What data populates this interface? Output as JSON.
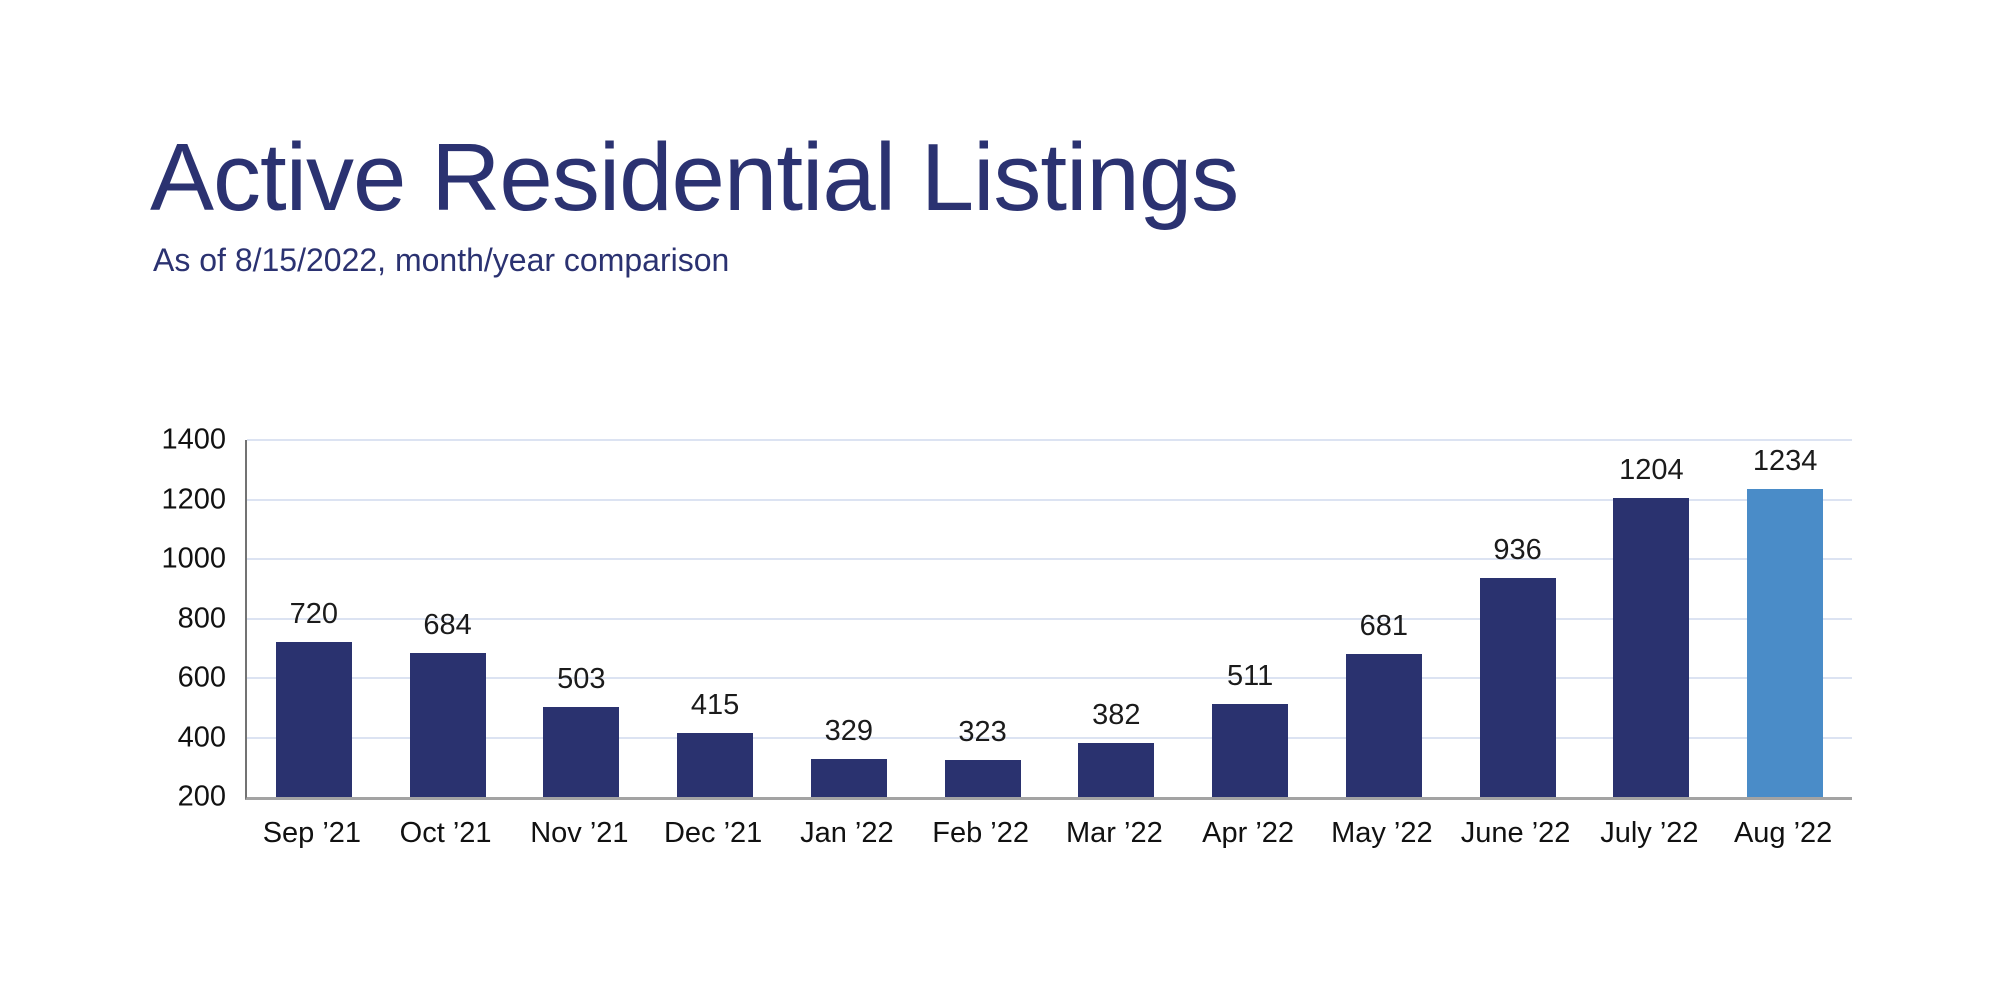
{
  "chart_data": {
    "type": "bar",
    "title": "Active Residential Listings",
    "subtitle": "As of 8/15/2022, month/year comparison",
    "categories": [
      "Sep ’21",
      "Oct ’21",
      "Nov ’21",
      "Dec ’21",
      "Jan ’22",
      "Feb ’22",
      "Mar ’22",
      "Apr ’22",
      "May ’22",
      "June ’22",
      "July ’22",
      "Aug ’22"
    ],
    "values": [
      720,
      684,
      503,
      415,
      329,
      323,
      382,
      511,
      681,
      936,
      1204,
      1234
    ],
    "data_labels": [
      "720",
      "684",
      "503",
      "415",
      "329",
      "323",
      "382",
      "511",
      "681",
      "936",
      "1204",
      "1234"
    ],
    "highlight_index": 11,
    "xlabel": "",
    "ylabel": "",
    "y_axis": {
      "min": 200,
      "max": 1400,
      "step": 200,
      "ticks": [
        "200",
        "400",
        "600",
        "800",
        "1000",
        "1200",
        "1400"
      ]
    },
    "grid": "horizontal gridlines only",
    "legend": "none",
    "colors": {
      "bar": "#2a326f",
      "highlight_bar": "#4a8cc8",
      "title_text": "#2b3271",
      "subtitle_text": "#2b3271",
      "gridline": "#dce3f2",
      "axis_line_left": "#737373",
      "axis_line_bottom": "#a3a3a3",
      "tick_text": "#111111",
      "value_label_text": "#1b1b1b"
    }
  }
}
